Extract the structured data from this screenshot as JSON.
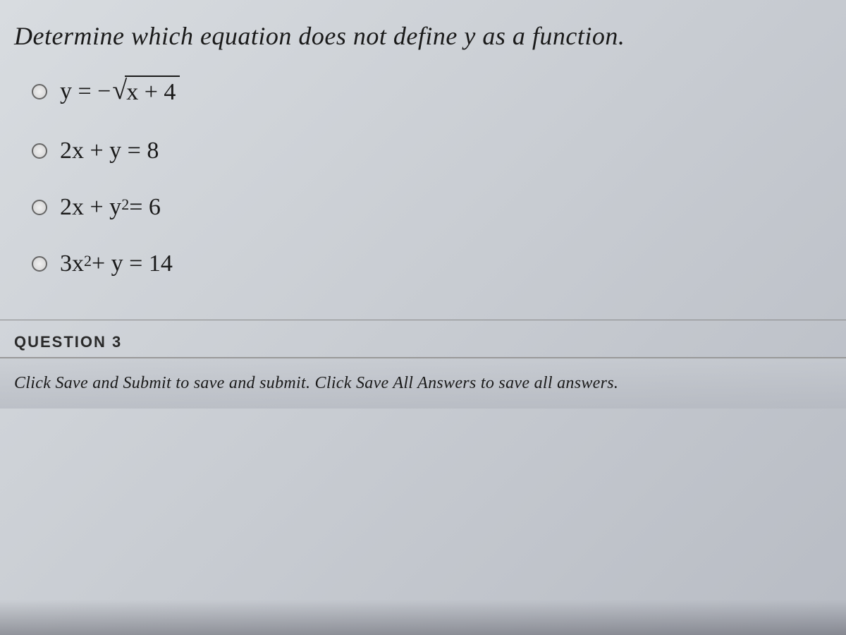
{
  "question": {
    "prompt": "Determine which equation does not define y as a function.",
    "options": [
      {
        "prefix": "y = − ",
        "sqrt_content": "x + 4"
      },
      {
        "text": "2x + y = 8"
      },
      {
        "before_sup": "2x + y",
        "sup": "2",
        "after_sup": " = 6"
      },
      {
        "before_sup": "3x",
        "sup": "2",
        "after_sup": " + y = 14"
      }
    ]
  },
  "next_question": {
    "label": "QUESTION",
    "number": "3"
  },
  "footer": {
    "text": "Click Save and Submit to save and submit. Click Save All Answers to save all answers."
  },
  "colors": {
    "text": "#1a1a1a",
    "radio_border": "#666666",
    "divider": "#888888",
    "footer_border": "#999999"
  }
}
